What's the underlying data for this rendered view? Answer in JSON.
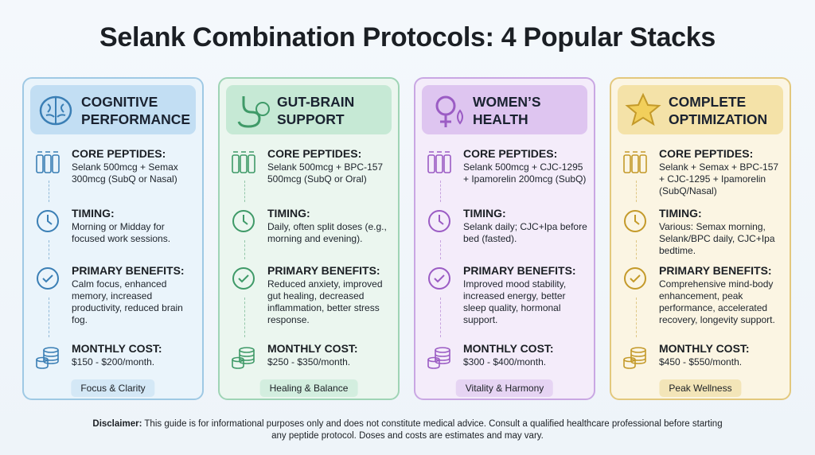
{
  "header": {
    "title": "Selank Combination Protocols: 4 Popular Stacks"
  },
  "cards": [
    {
      "title": "COGNITIVE PERFORMANCE",
      "tag": "Focus & Clarity",
      "sections": [
        {
          "label": "CORE PEPTIDES:",
          "text": "Selank 500mcg + Semax 300mcg (SubQ or Nasal)"
        },
        {
          "label": "TIMING:",
          "text": "Morning or Midday for focused work sessions."
        },
        {
          "label": "PRIMARY BENEFITS:",
          "text": "Calm focus, enhanced memory, increased productivity, reduced brain fog."
        },
        {
          "label": "MONTHLY COST:",
          "text": "$150 - $200/month."
        }
      ]
    },
    {
      "title": "GUT-BRAIN SUPPORT",
      "tag": "Healing & Balance",
      "sections": [
        {
          "label": "CORE PEPTIDES:",
          "text": "Selank 500mcg + BPC-157 500mcg (SubQ or Oral)"
        },
        {
          "label": "TIMING:",
          "text": "Daily, often split doses (e.g., morning and evening)."
        },
        {
          "label": "PRIMARY BENEFITS:",
          "text": "Reduced anxiety, improved gut healing, decreased inflammation, better stress response."
        },
        {
          "label": "MONTHLY COST:",
          "text": "$250 - $350/month."
        }
      ]
    },
    {
      "title": "WOMEN’S HEALTH",
      "tag": "Vitality & Harmony",
      "sections": [
        {
          "label": "CORE PEPTIDES:",
          "text": "Selank 500mcg + CJC-1295 + Ipamorelin 200mcg (SubQ)"
        },
        {
          "label": "TIMING:",
          "text": "Selank daily; CJC+Ipa before bed (fasted)."
        },
        {
          "label": "PRIMARY BENEFITS:",
          "text": "Improved mood stability, increased energy, better sleep quality, hormonal support."
        },
        {
          "label": "MONTHLY COST:",
          "text": "$300 - $400/month."
        }
      ]
    },
    {
      "title": "COMPLETE OPTIMIZATION",
      "tag": "Peak Wellness",
      "sections": [
        {
          "label": "CORE PEPTIDES:",
          "text": "Selank + Semax + BPC-157 + CJC-1295 + Ipamorelin (SubQ/Nasal)"
        },
        {
          "label": "TIMING:",
          "text": "Various: Semax morning, Selank/BPC daily, CJC+Ipa bedtime."
        },
        {
          "label": "PRIMARY BENEFITS:",
          "text": "Comprehensive mind-body enhancement, peak performance, accelerated recovery, longevity support."
        },
        {
          "label": "MONTHLY COST:",
          "text": "$450 - $550/month."
        }
      ]
    }
  ],
  "disclaimer": {
    "label": "Disclaimer:",
    "text": "This guide is for informational purposes only and does not constitute medical advice. Consult a qualified healthcare professional before starting any peptide protocol. Doses and costs are estimates and may vary."
  }
}
